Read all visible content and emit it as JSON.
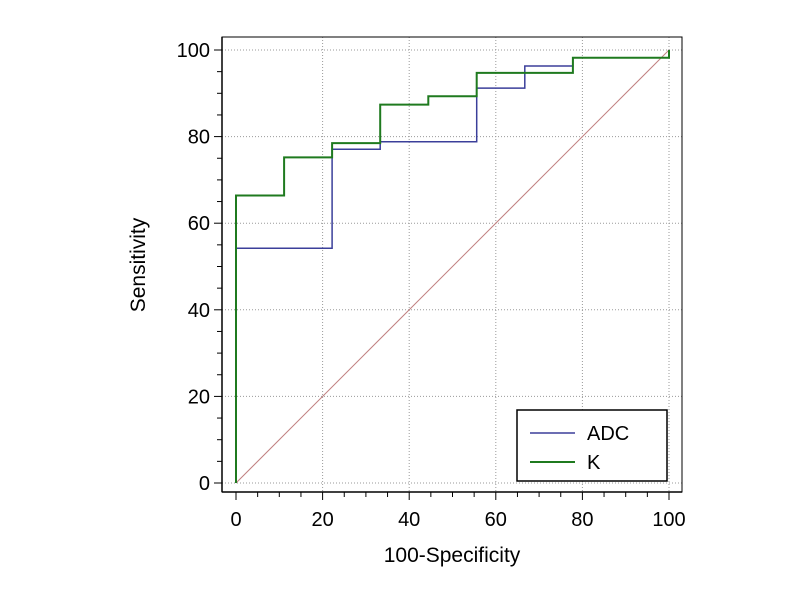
{
  "chart_data": {
    "type": "line",
    "title": "",
    "xlabel": "100-Specificity",
    "ylabel": "Sensitivity",
    "xlim": [
      0,
      100
    ],
    "ylim": [
      0,
      100
    ],
    "xticks": [
      0,
      20,
      40,
      60,
      80,
      100
    ],
    "yticks": [
      0,
      20,
      40,
      60,
      80,
      100
    ],
    "grid": true,
    "legend_position": "bottom-right",
    "reference_line": {
      "name": "chance-diagonal",
      "color": "#c08080",
      "x": [
        0,
        100
      ],
      "y": [
        0,
        100
      ]
    },
    "series": [
      {
        "name": "ADC",
        "color": "#3b3f9a",
        "x": [
          0,
          0,
          22.2,
          22.2,
          33.3,
          33.3,
          55.6,
          55.6,
          66.7,
          66.7,
          77.8,
          77.8,
          100,
          100
        ],
        "y": [
          0,
          54.2,
          54.2,
          77.1,
          77.1,
          78.8,
          78.8,
          91.2,
          91.2,
          96.3,
          96.3,
          98.2,
          98.2,
          100
        ]
      },
      {
        "name": "K",
        "color": "#1f7a1f",
        "x": [
          0,
          0,
          11.1,
          11.1,
          22.2,
          22.2,
          33.3,
          33.3,
          44.4,
          44.4,
          55.6,
          55.6,
          77.8,
          77.8,
          100,
          100
        ],
        "y": [
          0,
          66.4,
          66.4,
          75.2,
          75.2,
          78.5,
          78.5,
          87.4,
          87.4,
          89.3,
          89.3,
          94.7,
          94.7,
          98.2,
          98.2,
          100
        ]
      }
    ]
  }
}
